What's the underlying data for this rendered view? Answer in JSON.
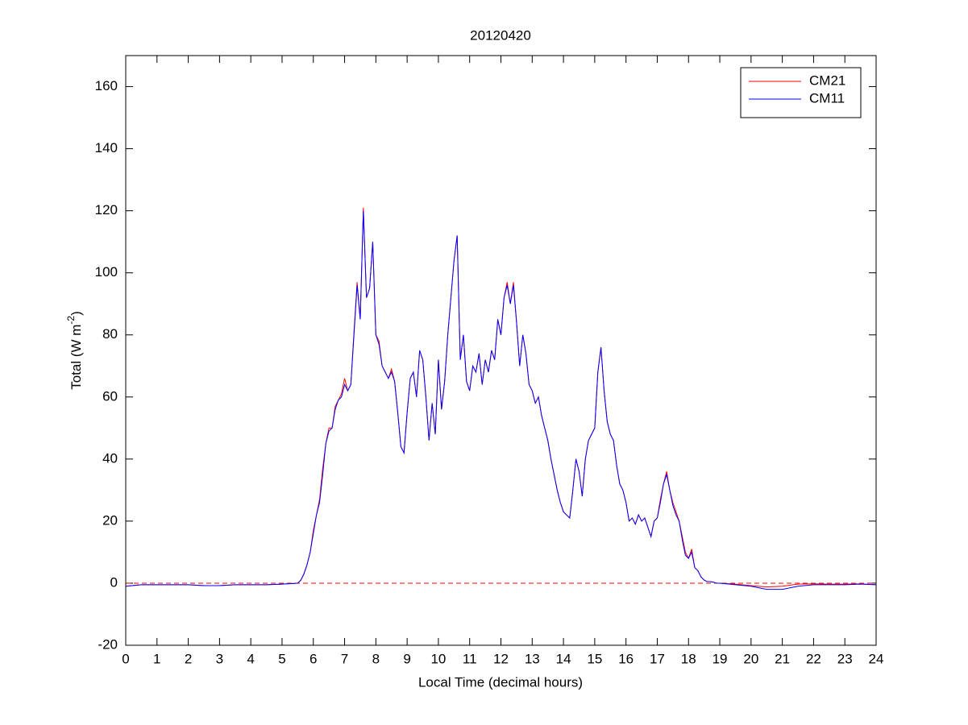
{
  "chart_data": {
    "type": "line",
    "title": "20120420",
    "xlabel": "Local Time (decimal hours)",
    "ylabel": [
      "Total (W m",
      "-2",
      ")"
    ],
    "xlim": [
      0,
      24
    ],
    "xticks": [
      0,
      1,
      2,
      3,
      4,
      5,
      6,
      7,
      8,
      9,
      10,
      11,
      12,
      13,
      14,
      15,
      16,
      17,
      18,
      19,
      20,
      21,
      22,
      23,
      24
    ],
    "ylim": [
      -20,
      170
    ],
    "yticks": [
      -20,
      0,
      20,
      40,
      60,
      80,
      100,
      120,
      140,
      160
    ],
    "legend": "northeast",
    "hline": {
      "value": 0,
      "color": "#ff0000",
      "dash": true
    },
    "x": [
      0,
      0.5,
      1,
      1.5,
      2,
      2.5,
      3,
      3.5,
      4,
      4.5,
      5,
      5.5,
      5.6,
      5.7,
      5.8,
      5.9,
      6.0,
      6.1,
      6.2,
      6.3,
      6.4,
      6.5,
      6.6,
      6.7,
      6.8,
      6.9,
      7.0,
      7.1,
      7.2,
      7.3,
      7.4,
      7.5,
      7.6,
      7.7,
      7.8,
      7.9,
      8.0,
      8.1,
      8.2,
      8.3,
      8.4,
      8.5,
      8.6,
      8.7,
      8.8,
      8.9,
      9.0,
      9.1,
      9.2,
      9.3,
      9.4,
      9.5,
      9.6,
      9.7,
      9.8,
      9.9,
      10.0,
      10.1,
      10.2,
      10.3,
      10.4,
      10.5,
      10.6,
      10.7,
      10.8,
      10.9,
      11.0,
      11.1,
      11.2,
      11.3,
      11.4,
      11.5,
      11.6,
      11.7,
      11.8,
      11.9,
      12.0,
      12.1,
      12.2,
      12.3,
      12.4,
      12.5,
      12.6,
      12.7,
      12.8,
      12.9,
      13.0,
      13.1,
      13.2,
      13.3,
      13.4,
      13.5,
      13.6,
      13.7,
      13.8,
      13.9,
      14.0,
      14.1,
      14.2,
      14.3,
      14.4,
      14.5,
      14.6,
      14.7,
      14.8,
      14.9,
      15.0,
      15.1,
      15.2,
      15.3,
      15.4,
      15.5,
      15.6,
      15.7,
      15.8,
      15.9,
      16.0,
      16.1,
      16.2,
      16.3,
      16.4,
      16.5,
      16.6,
      16.7,
      16.8,
      16.9,
      17.0,
      17.1,
      17.2,
      17.3,
      17.4,
      17.5,
      17.6,
      17.7,
      17.8,
      17.9,
      18.0,
      18.1,
      18.2,
      18.3,
      18.4,
      18.5,
      18.6,
      18.7,
      18.8,
      18.9,
      19.0,
      19.5,
      20,
      20.5,
      21,
      21.5,
      22,
      22.5,
      23,
      23.5,
      24
    ],
    "series": [
      {
        "name": "CM21",
        "color": "#ff0000",
        "values": [
          -1,
          -0.5,
          -0.5,
          -0.5,
          -0.5,
          -0.8,
          -0.8,
          -0.5,
          -0.5,
          -0.5,
          -0.3,
          0,
          1,
          3,
          6,
          10,
          17,
          22,
          27,
          37,
          45,
          50,
          50,
          57,
          59,
          61,
          66,
          62,
          64,
          81,
          97,
          85,
          121,
          92,
          95,
          110,
          80,
          78,
          70,
          68,
          66,
          69,
          65,
          55,
          44,
          42,
          55,
          66,
          68,
          60,
          75,
          72,
          60,
          46,
          58,
          48,
          72,
          56,
          65,
          80,
          92,
          104,
          112,
          72,
          80,
          65,
          62,
          70,
          68,
          74,
          64,
          72,
          68,
          75,
          72,
          85,
          80,
          92,
          97,
          90,
          97,
          84,
          70,
          80,
          74,
          64,
          62,
          58,
          60,
          54,
          50,
          46,
          40,
          35,
          30,
          26,
          23,
          22,
          21,
          30,
          40,
          36,
          28,
          40,
          46,
          48,
          50,
          68,
          76,
          62,
          52,
          48,
          46,
          38,
          32,
          30,
          26,
          20,
          21,
          19,
          22,
          20,
          21,
          18,
          15,
          20,
          21,
          27,
          32,
          36,
          30,
          26,
          23,
          20,
          15,
          10,
          8,
          11,
          5,
          4,
          2,
          1,
          0.5,
          0.5,
          0.3,
          0,
          0,
          -0.3,
          -0.8,
          -1.2,
          -1,
          -0.3,
          -0.2,
          -0.3,
          -0.3,
          -0.2,
          -0.5
        ]
      },
      {
        "name": "CM11",
        "color": "#0000ff",
        "values": [
          -1,
          -0.5,
          -0.5,
          -0.5,
          -0.5,
          -0.8,
          -0.8,
          -0.5,
          -0.5,
          -0.5,
          -0.3,
          0,
          1,
          3,
          6,
          10,
          16,
          22,
          26,
          35,
          45,
          49,
          50,
          56,
          59,
          60,
          64,
          62,
          64,
          80,
          96,
          85,
          120,
          92,
          95,
          110,
          80,
          77,
          70,
          68,
          66,
          68,
          65,
          55,
          44,
          42,
          55,
          66,
          68,
          60,
          75,
          72,
          60,
          46,
          58,
          48,
          72,
          56,
          65,
          80,
          92,
          104,
          112,
          72,
          80,
          65,
          62,
          70,
          68,
          74,
          64,
          72,
          68,
          75,
          72,
          85,
          80,
          92,
          96,
          90,
          96,
          84,
          70,
          80,
          74,
          64,
          62,
          58,
          60,
          54,
          50,
          46,
          40,
          35,
          30,
          26,
          23,
          22,
          21,
          30,
          40,
          36,
          28,
          40,
          46,
          48,
          50,
          68,
          76,
          62,
          52,
          48,
          46,
          38,
          32,
          30,
          26,
          20,
          21,
          19,
          22,
          20,
          21,
          18,
          15,
          20,
          21,
          26,
          32,
          35,
          30,
          25,
          22,
          20,
          14,
          9,
          8,
          10,
          5,
          4,
          2,
          1,
          0.5,
          0.5,
          0.3,
          0,
          0,
          -0.5,
          -1,
          -2,
          -2,
          -1,
          -0.5,
          -0.5,
          -0.5,
          -0.3,
          -0.5
        ]
      }
    ]
  }
}
